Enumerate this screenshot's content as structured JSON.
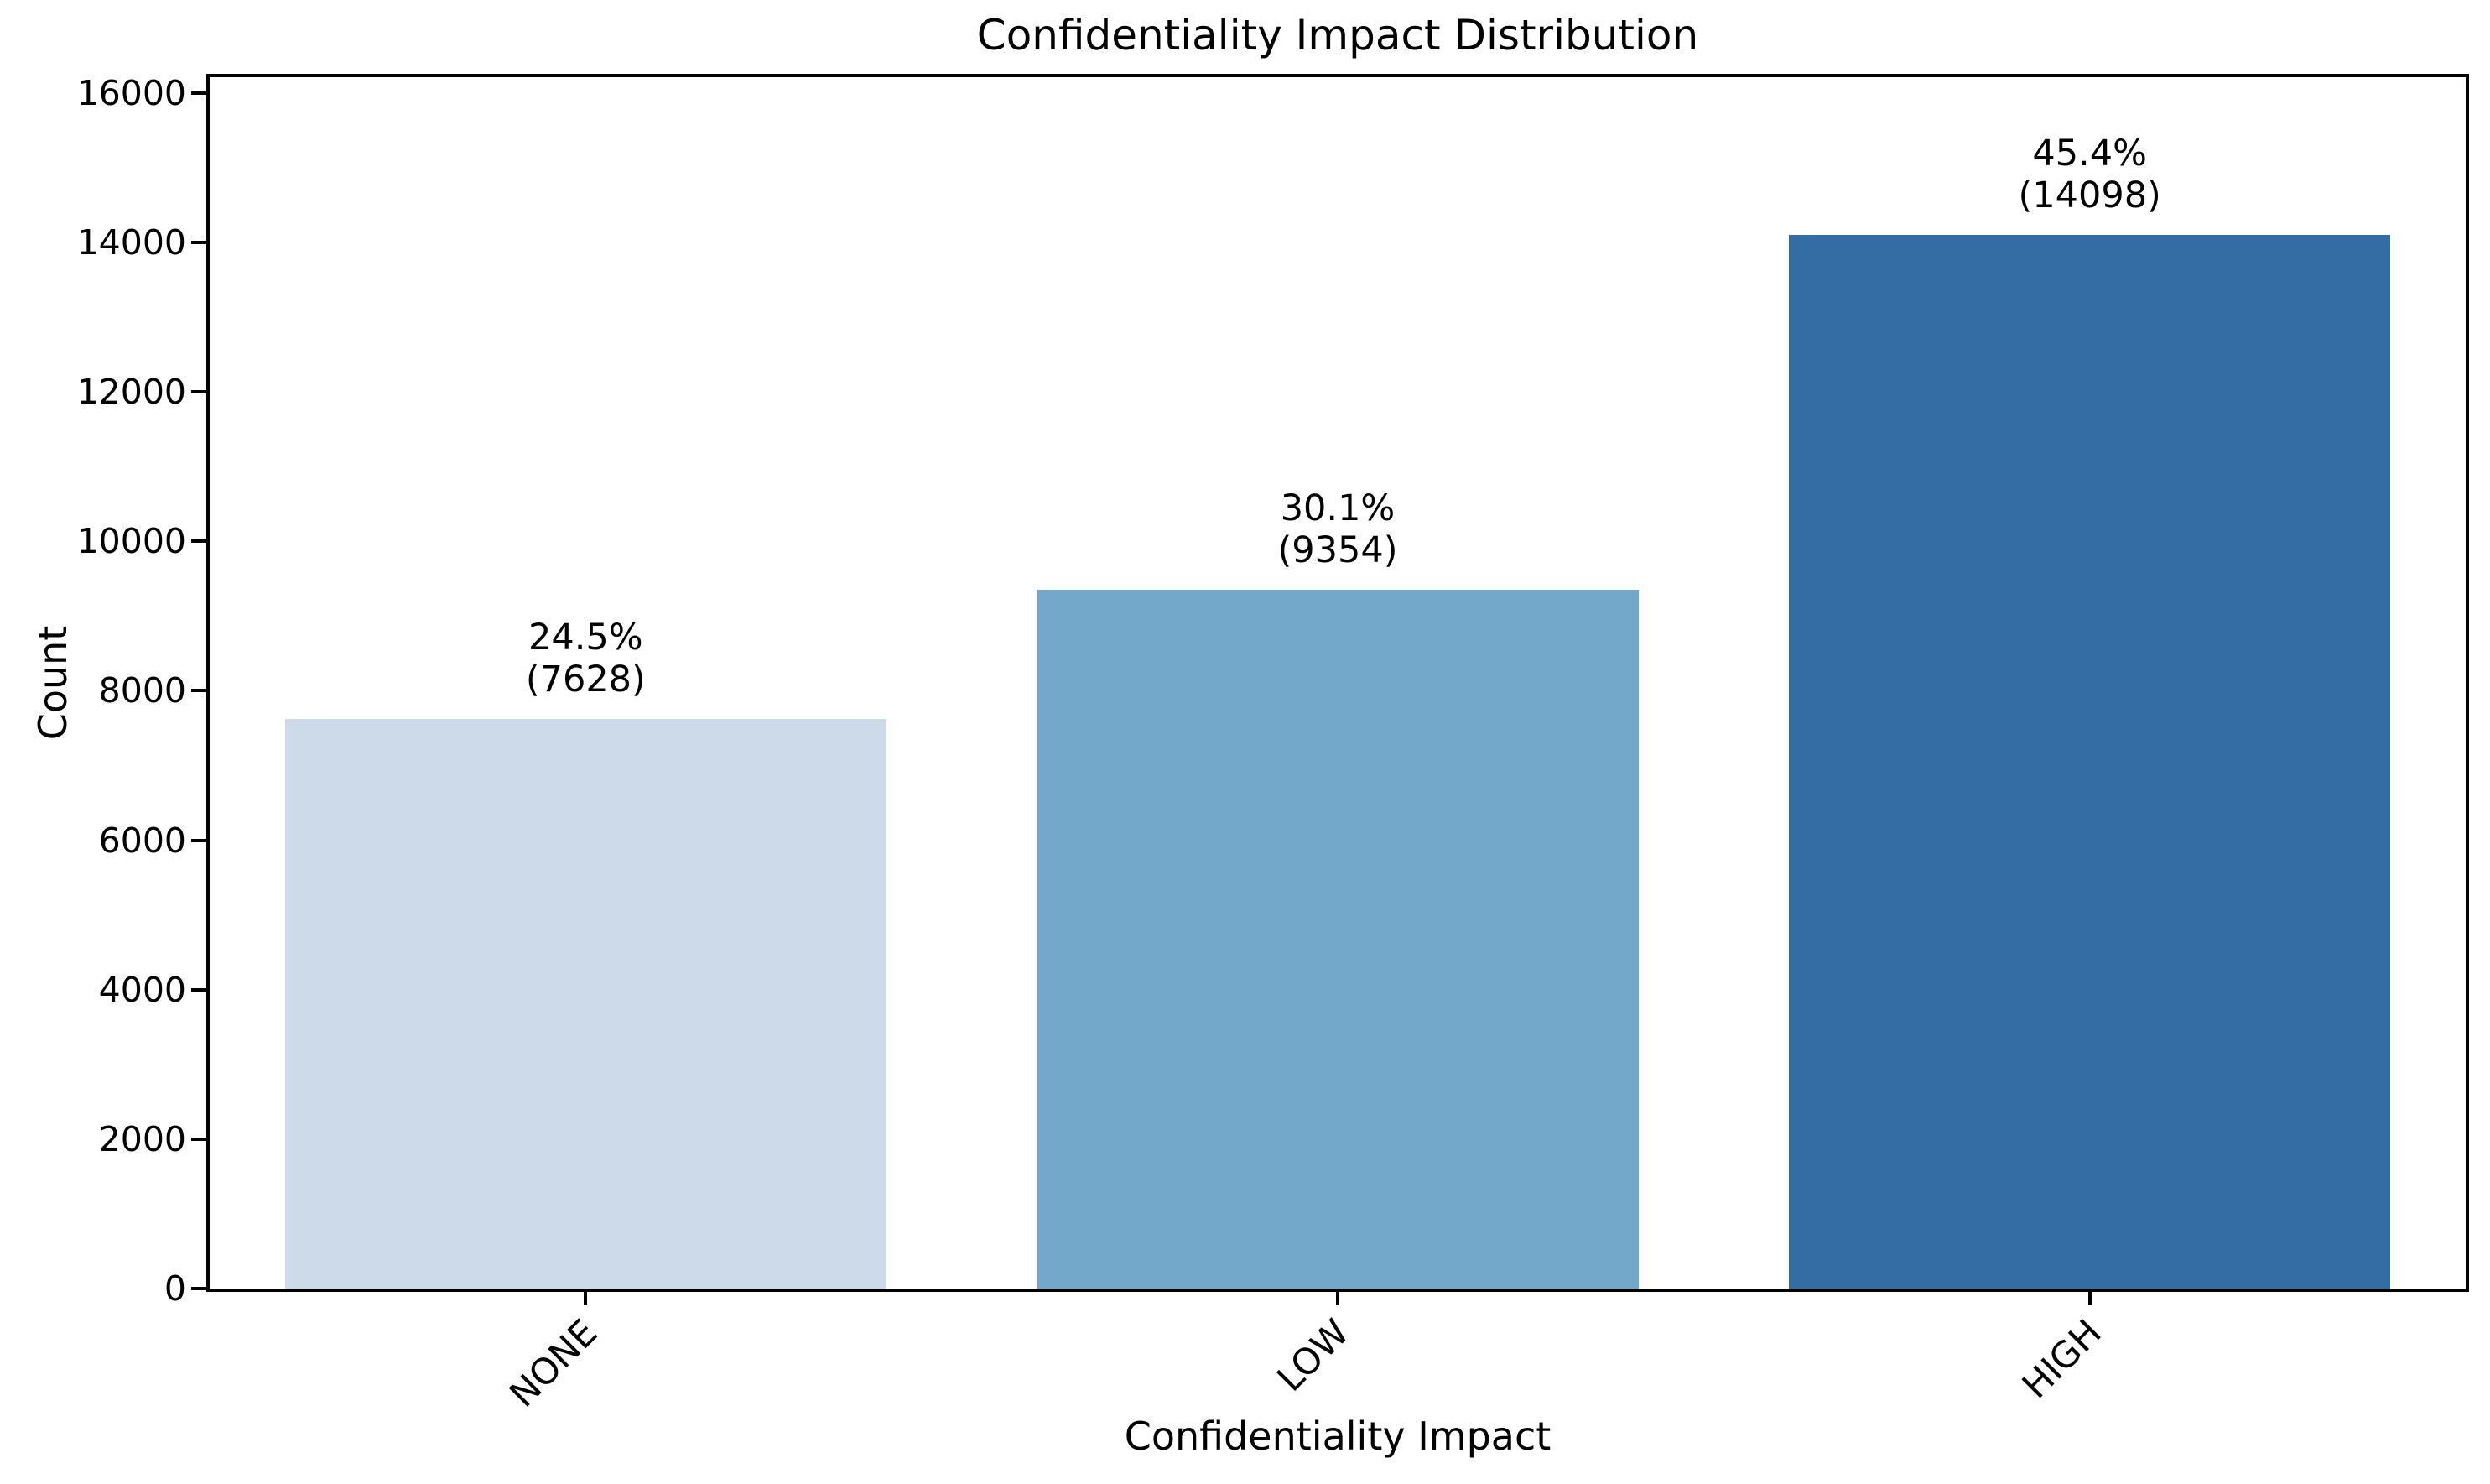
{
  "chart_data": {
    "type": "bar",
    "title": "Confidentiality Impact Distribution",
    "xlabel": "Confidentiality Impact",
    "ylabel": "Count",
    "categories": [
      "NONE",
      "LOW",
      "HIGH"
    ],
    "values": [
      7628,
      9354,
      14098
    ],
    "percent_labels": [
      "24.5%",
      "30.1%",
      "45.4%"
    ],
    "count_labels": [
      "(7628)",
      "(9354)",
      "(14098)"
    ],
    "bar_colors": [
      "#ccdaea",
      "#74a8ca",
      "#336da4"
    ],
    "yticks": [
      0,
      2000,
      4000,
      6000,
      8000,
      10000,
      12000,
      14000,
      16000
    ],
    "ylim": [
      0,
      16213
    ],
    "xlim_note": "3 categories, bar width 0.8 of slot",
    "grid": false,
    "legend": null,
    "x_tick_rotation_deg": 45,
    "axis_color": "#000000",
    "text_color": "#000000",
    "background_color": "#ffffff"
  }
}
